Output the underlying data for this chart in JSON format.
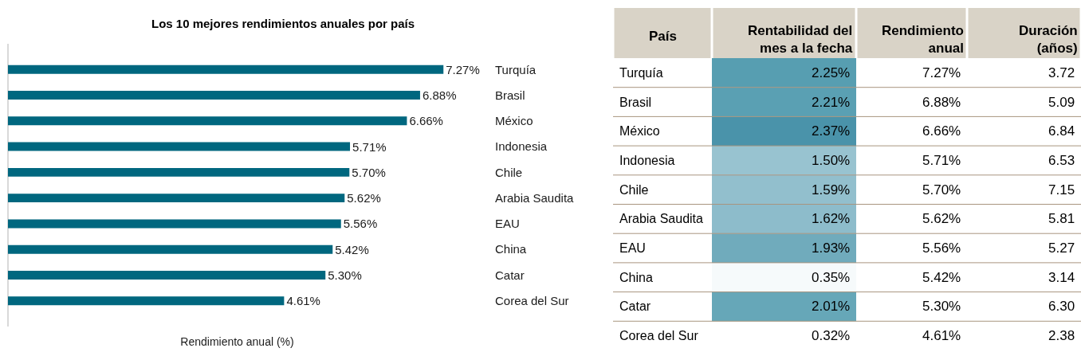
{
  "chart_data": [
    {
      "type": "bar",
      "orientation": "horizontal",
      "title": "Los 10 mejores rendimientos anuales por país",
      "xlabel": "Rendimiento anual (%)",
      "categories": [
        "Turquía",
        "Brasil",
        "México",
        "Indonesia",
        "Chile",
        "Arabia Saudita",
        "EAU",
        "China",
        "Catar",
        "Corea del Sur"
      ],
      "values": [
        7.27,
        6.88,
        6.66,
        5.71,
        5.7,
        5.62,
        5.56,
        5.42,
        5.3,
        4.61
      ],
      "value_labels": [
        "7.27%",
        "6.88%",
        "6.66%",
        "5.71%",
        "5.70%",
        "5.62%",
        "5.56%",
        "5.42%",
        "5.30%",
        "4.61%"
      ],
      "color": "#00677f",
      "tick_labels": "y"
    },
    {
      "type": "heatmap",
      "ylabel": "País",
      "categories": [
        "Rentabilidad del mes a la fecha",
        "Rendimiento anual",
        "Duración (años)"
      ],
      "y_categories": [
        "Turquía",
        "Brasil",
        "México",
        "Indonesia",
        "Chile",
        "Arabia Saudita",
        "EAU",
        "China",
        "Catar",
        "Corea del Sur"
      ],
      "cells": [
        [
          2.25,
          7.27,
          3.72
        ],
        [
          2.21,
          6.88,
          5.09
        ],
        [
          2.37,
          6.66,
          6.84
        ],
        [
          1.5,
          5.71,
          6.53
        ],
        [
          1.59,
          5.7,
          7.15
        ],
        [
          1.62,
          5.62,
          5.81
        ],
        [
          1.93,
          5.56,
          5.27
        ],
        [
          0.35,
          5.42,
          3.14
        ],
        [
          2.01,
          5.3,
          6.3
        ],
        [
          0.32,
          4.61,
          2.38
        ]
      ],
      "cell_labels": [
        [
          "2.25%",
          "7.27%",
          "3.72"
        ],
        [
          "2.21%",
          "6.88%",
          "5.09"
        ],
        [
          "2.37%",
          "6.66%",
          "6.84"
        ],
        [
          "1.50%",
          "5.71%",
          "6.53"
        ],
        [
          "1.59%",
          "5.70%",
          "7.15"
        ],
        [
          "1.62%",
          "5.62%",
          "5.81"
        ],
        [
          "1.93%",
          "5.56%",
          "5.27"
        ],
        [
          "0.35%",
          "5.42%",
          "3.14"
        ],
        [
          "2.01%",
          "5.30%",
          "6.30"
        ],
        [
          "0.32%",
          "4.61%",
          "2.38"
        ]
      ],
      "colors": [
        [
          "#579eb1",
          null,
          null
        ],
        [
          "#5aa0b3",
          null,
          null
        ],
        [
          "#4a93aa",
          null,
          null
        ],
        [
          "#98c3d0",
          null,
          null
        ],
        [
          "#92bfcd",
          null,
          null
        ],
        [
          "#8dbccb",
          null,
          null
        ],
        [
          "#70abbc",
          null,
          null
        ],
        [
          "#f6fafb",
          null,
          null
        ],
        [
          "#66a7b8",
          null,
          null
        ],
        [
          null,
          null,
          null
        ]
      ]
    }
  ]
}
